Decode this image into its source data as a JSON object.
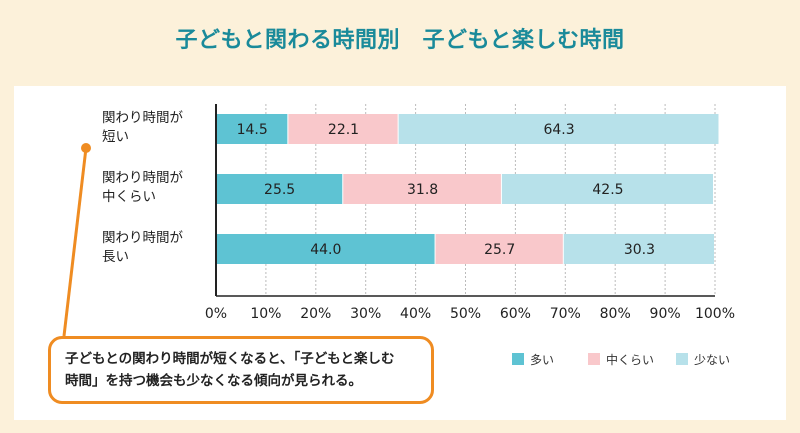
{
  "title": "子どもと関わる時間別　子どもと楽しむ時間",
  "note": [
    "子どもとの関わり時間が短くなると、「子どもと楽しむ",
    "時間」を持つ機会も少なくなる傾向が見られる。"
  ],
  "colors": {
    "many": "#5ec3d3",
    "medium": "#f9c8cb",
    "few": "#b7e1ea",
    "accent": "#ef8c22",
    "title": "#1a8a9a",
    "frame": "#fcf1da"
  },
  "chart_data": {
    "type": "bar",
    "orientation": "horizontal",
    "stacked": true,
    "categories": [
      [
        "関わり時間が",
        "短い"
      ],
      [
        "関わり時間が",
        "中くらい"
      ],
      [
        "関わり時間が",
        "長い"
      ]
    ],
    "series": [
      {
        "name": "多い",
        "values": [
          14.5,
          25.5,
          44.0
        ],
        "labels": [
          "14.5",
          "25.5",
          "44.0"
        ]
      },
      {
        "name": "中くらい",
        "values": [
          22.1,
          31.8,
          25.7
        ],
        "labels": [
          "22.1",
          "31.8",
          "25.7"
        ]
      },
      {
        "name": "少ない",
        "values": [
          64.3,
          42.5,
          30.3
        ],
        "labels": [
          "64.3",
          "42.5",
          "30.3"
        ]
      }
    ],
    "xlim": [
      0,
      100
    ],
    "xticks": [
      "0%",
      "10%",
      "20%",
      "30%",
      "40%",
      "50%",
      "60%",
      "70%",
      "80%",
      "90%",
      "100%"
    ],
    "grid": true,
    "legend": "bottom-right"
  }
}
